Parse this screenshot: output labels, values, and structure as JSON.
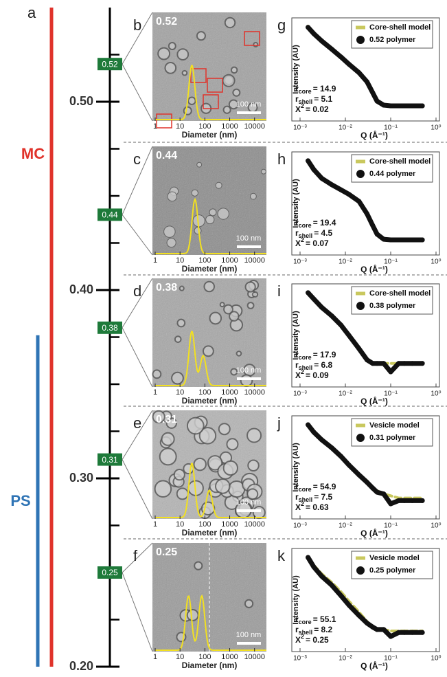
{
  "panel_a": {
    "label": "a",
    "ylim": [
      0.2,
      0.55
    ],
    "yticks": [
      {
        "value": 0.2,
        "label": "0.20"
      },
      {
        "value": 0.3,
        "label": "0.30"
      },
      {
        "value": 0.4,
        "label": "0.40"
      },
      {
        "value": 0.5,
        "label": "0.50"
      }
    ],
    "minor_yticks": [
      0.225,
      0.25,
      0.275,
      0.325,
      0.35,
      0.375,
      0.425,
      0.45,
      0.475,
      0.525
    ],
    "ranges": [
      {
        "name": "MC",
        "color": "#e0332b",
        "start": 0.2,
        "end": 0.55
      },
      {
        "name": "PS",
        "color": "#2f74b5",
        "start": 0.2,
        "end": 0.376
      }
    ],
    "tag_color": "#1e7a3a"
  },
  "tem_axis": {
    "x_label": "Diameter (nm)",
    "scale_bar": "100 nm",
    "xlim": [
      1,
      30000
    ],
    "xticks": [
      1,
      10,
      100,
      1000,
      10000
    ],
    "curve_color": "#f2e021"
  },
  "tem_panels": [
    {
      "label": "b",
      "fraction": 0.52,
      "peaks": [
        {
          "diameter": 30,
          "height": 1
        }
      ]
    },
    {
      "label": "c",
      "fraction": 0.44,
      "peaks": [
        {
          "diameter": 40,
          "height": 1
        }
      ]
    },
    {
      "label": "d",
      "fraction": 0.38,
      "peaks": [
        {
          "diameter": 30,
          "height": 1
        },
        {
          "diameter": 85,
          "height": 0.55
        }
      ]
    },
    {
      "label": "e",
      "fraction": 0.31,
      "peaks": [
        {
          "diameter": 30,
          "height": 1
        },
        {
          "diameter": 150,
          "height": 0.5
        }
      ]
    },
    {
      "label": "f",
      "fraction": 0.25,
      "peaks": [
        {
          "diameter": 22,
          "height": 1
        },
        {
          "diameter": 75,
          "height": 1
        }
      ]
    }
  ],
  "saxs_axis": {
    "x_label": "Q (Å⁻¹)",
    "y_label": "Intensity (AU)",
    "xlim": [
      0.001,
      1
    ],
    "xticks": [
      {
        "value": 0.001,
        "label": "10⁻³"
      },
      {
        "value": 0.01,
        "label": "10⁻²"
      },
      {
        "value": 0.1,
        "label": "10⁻¹"
      },
      {
        "value": 1,
        "label": "10⁰"
      }
    ],
    "x": [
      0.0015,
      0.002,
      0.003,
      0.005,
      0.008,
      0.012,
      0.02,
      0.03,
      0.04,
      0.05,
      0.07,
      0.1,
      0.15,
      0.2,
      0.3,
      0.5
    ],
    "model_color": "#c9c85e",
    "data_color": "#111111"
  },
  "saxs_panels": [
    {
      "label": "g",
      "series": [
        {
          "name": "Core-shell model",
          "values": [
            1100,
            650,
            350,
            180,
            95,
            55,
            28,
            12,
            5,
            2.4,
            1.8,
            1.7,
            1.7,
            1.7,
            1.7,
            1.7
          ]
        },
        {
          "name": "0.52 polymer",
          "values": [
            1000,
            600,
            330,
            170,
            90,
            50,
            25,
            12,
            5,
            2.5,
            1.8,
            1.7,
            1.7,
            1.7,
            1.7,
            1.7
          ]
        }
      ],
      "params": [
        {
          "symbol": "r",
          "sub": "core",
          "text": "= 14.9"
        },
        {
          "symbol": "r",
          "sub": "shell",
          "text": "= 5.1"
        },
        {
          "symbol": "X",
          "sup": "2",
          "text": "= 0.02"
        }
      ]
    },
    {
      "label": "h",
      "series": [
        {
          "name": "Core-shell model",
          "values": [
            1050,
            520,
            260,
            150,
            95,
            65,
            38,
            15,
            6,
            3,
            2,
            1.9,
            1.9,
            1.9,
            1.9,
            1.9
          ]
        },
        {
          "name": "0.44 polymer",
          "values": [
            1000,
            500,
            250,
            150,
            100,
            70,
            40,
            15,
            6,
            3,
            2,
            1.9,
            1.9,
            1.9,
            1.9,
            1.9
          ]
        }
      ],
      "params": [
        {
          "symbol": "r",
          "sub": "core",
          "text": "= 19.4"
        },
        {
          "symbol": "r",
          "sub": "shell",
          "text": "= 4.5"
        },
        {
          "symbol": "X",
          "sup": "2",
          "text": "= 0.07"
        }
      ]
    },
    {
      "label": "i",
      "series": [
        {
          "name": "Core-shell model",
          "values": [
            1050,
            620,
            310,
            150,
            70,
            30,
            10,
            4,
            3,
            3,
            3,
            3,
            3,
            3,
            3,
            3
          ]
        },
        {
          "name": "0.38 polymer",
          "values": [
            1000,
            600,
            300,
            150,
            70,
            30,
            10,
            4,
            3,
            3,
            3,
            1.5,
            3,
            3,
            3,
            3
          ]
        }
      ],
      "params": [
        {
          "symbol": "r",
          "sub": "core",
          "text": "= 17.9"
        },
        {
          "symbol": "r",
          "sub": "shell",
          "text": "= 6.8"
        },
        {
          "symbol": "X",
          "sup": "2",
          "text": "= 0.09"
        }
      ]
    },
    {
      "label": "j",
      "series": [
        {
          "name": "Vesicle model",
          "values": [
            1050,
            620,
            360,
            200,
            110,
            60,
            32,
            20,
            13,
            10,
            8,
            7,
            6,
            6,
            6,
            6
          ]
        },
        {
          "name": "0.31 polymer",
          "values": [
            1000,
            600,
            350,
            200,
            110,
            60,
            30,
            18,
            12,
            9,
            8,
            4,
            5,
            5,
            5,
            5
          ]
        }
      ],
      "params": [
        {
          "symbol": "r",
          "sub": "core",
          "text": "= 54.9"
        },
        {
          "symbol": "r",
          "sub": "shell",
          "text": "= 7.5"
        },
        {
          "symbol": "X",
          "sup": "2",
          "text": "= 0.63"
        }
      ]
    },
    {
      "label": "k",
      "series": [
        {
          "name": "Vesicle model",
          "values": [
            1050,
            560,
            300,
            160,
            80,
            40,
            18,
            9,
            6,
            5,
            5,
            4.5,
            4.5,
            4.5,
            4.5,
            4.5
          ]
        },
        {
          "name": "0.25 polymer",
          "values": [
            1000,
            500,
            250,
            130,
            60,
            30,
            14,
            8,
            6,
            5,
            5,
            3,
            4,
            4,
            4,
            4
          ]
        }
      ],
      "params": [
        {
          "symbol": "r",
          "sub": "core",
          "text": "= 55.1"
        },
        {
          "symbol": "r",
          "sub": "shell",
          "text": "= 8.2"
        },
        {
          "symbol": "X",
          "sup": "2",
          "text": "= 0.25"
        }
      ]
    }
  ]
}
